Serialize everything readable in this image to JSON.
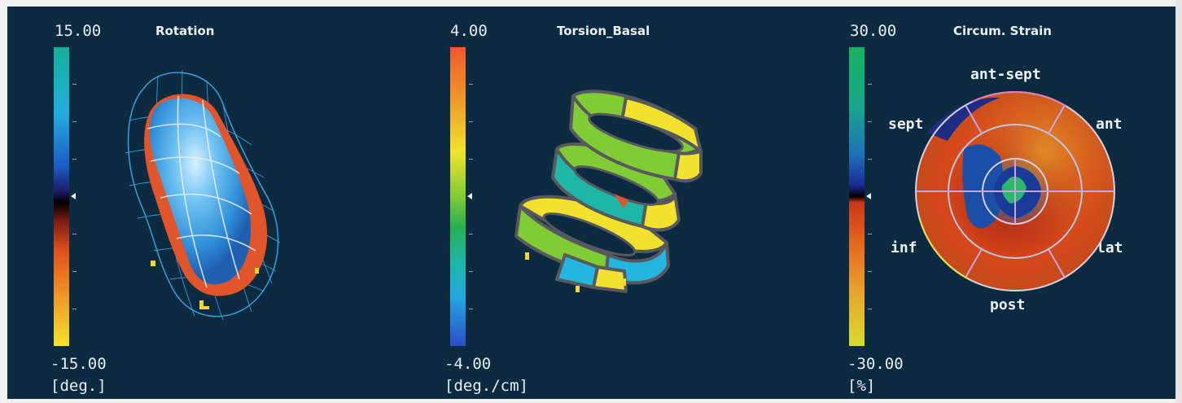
{
  "panels": [
    {
      "title": "Rotation",
      "max": "15.00",
      "min": "-15.00",
      "unit": "[deg.]",
      "colormap": [
        "#12b09a",
        "#22aedd",
        "#1d59c5",
        "#1c1c6a",
        "#000000",
        "#7a1a14",
        "#e0501b",
        "#f09a27",
        "#f4e22c"
      ]
    },
    {
      "title": "Torsion_Basal",
      "max": "4.00",
      "min": "-4.00",
      "unit": "[deg./cm]",
      "colormap": [
        "#ee5a28",
        "#f09a2a",
        "#f2e22e",
        "#7fcc34",
        "#2aae52",
        "#1eb6a6",
        "#23a6e0",
        "#2c4ec8"
      ]
    },
    {
      "title": "Circum. Strain",
      "max": "30.00",
      "min": "-30.00",
      "unit": "[%]",
      "colormap": [
        "#17b05c",
        "#17a68c",
        "#1e72b8",
        "#1b2b96",
        "#000000",
        "#cc3718",
        "#e6681e",
        "#e8a42c",
        "#d8dc2e"
      ],
      "segments": {
        "top": "ant-sept",
        "upper_left": "sept",
        "upper_right": "ant",
        "lower_left": "inf",
        "lower_right": "lat",
        "bottom": "post"
      }
    }
  ]
}
